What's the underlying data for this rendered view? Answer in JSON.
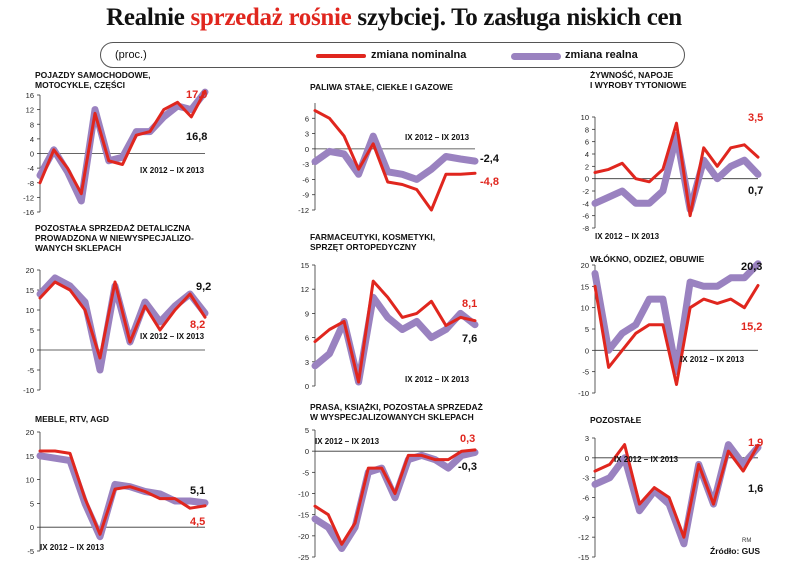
{
  "header": {
    "title_part1": "Realnie ",
    "title_highlight": "sprzedaż rośnie",
    "title_part2": " szybciej.  To zasługa niskich cen"
  },
  "legend": {
    "unit": "(proc.)",
    "nominal": "zmiana nominalna",
    "real": "zmiana realna"
  },
  "footer": {
    "initials": "RM",
    "source": "Źródło: GUS"
  },
  "colors": {
    "nominal": "#e0261e",
    "real": "#9a82c0",
    "title_highlight": "#e0261e"
  },
  "chart_data": [
    {
      "type": "line",
      "title_lines": [
        "POJAZDY SAMOCHODOWE,",
        "MOTOCYKLE, CZĘŚCI"
      ],
      "period_label": "IX 2012 – IX 2013",
      "ylim": [
        -16,
        16
      ],
      "yticks": [
        -16,
        -12,
        -8,
        -4,
        0,
        4,
        8,
        12,
        16
      ],
      "series": [
        {
          "name": "zmiana nominalna",
          "values": [
            -8,
            1,
            -4,
            -11,
            11,
            -2,
            -3,
            5,
            6,
            12,
            14,
            10,
            17
          ]
        },
        {
          "name": "zmiana realna",
          "values": [
            -6,
            1,
            -5,
            -13,
            12,
            -2,
            -1,
            6,
            6,
            10,
            13,
            12,
            16.8
          ]
        }
      ],
      "end_labels": {
        "nominal": "17,0",
        "real": "16,8"
      }
    },
    {
      "type": "line",
      "title_lines": [
        "PALIWA STAŁE, CIEKŁE I GAZOWE"
      ],
      "period_label": "IX 2012 – IX 2013",
      "ylim": [
        -12,
        9
      ],
      "yticks": [
        -12,
        -9,
        -6,
        -3,
        0,
        3,
        6
      ],
      "series": [
        {
          "name": "zmiana nominalna",
          "values": [
            7.5,
            6,
            2.5,
            -4,
            1,
            -6.5,
            -7,
            -8,
            -12,
            -5,
            -5,
            -4.8
          ]
        },
        {
          "name": "zmiana realna",
          "values": [
            -2.5,
            -0.5,
            -1,
            -5,
            2.5,
            -4.5,
            -5,
            -6,
            -4,
            -1.5,
            -2,
            -2.4
          ]
        }
      ],
      "end_labels": {
        "nominal": "-4,8",
        "real": "-2,4"
      }
    },
    {
      "type": "line",
      "title_lines": [
        "ŻYWNOŚĆ, NAPOJE",
        "I WYROBY TYTONIOWE"
      ],
      "period_label": "IX 2012 – IX 2013",
      "ylim": [
        -8,
        10
      ],
      "yticks": [
        -8,
        -6,
        -4,
        -2,
        0,
        2,
        4,
        6,
        8,
        10
      ],
      "series": [
        {
          "name": "zmiana nominalna",
          "values": [
            1,
            1.5,
            2.5,
            0,
            -0.5,
            1.5,
            9,
            -6,
            5,
            2,
            5,
            5.5,
            3.5
          ]
        },
        {
          "name": "zmiana realna",
          "values": [
            -4,
            -3,
            -2,
            -4,
            -4,
            -2,
            7,
            -5,
            3,
            0,
            2,
            3,
            0.7
          ]
        }
      ],
      "end_labels": {
        "nominal": "3,5",
        "real": "0,7"
      }
    },
    {
      "type": "line",
      "title_lines": [
        "POZOSTAŁA SPRZEDAŻ DETALICZNA",
        "PROWADZONA W NIEWYSPECJALIZO-",
        "WANYCH SKLEPACH"
      ],
      "period_label": "IX 2012 – IX 2013",
      "ylim": [
        -10,
        20
      ],
      "yticks": [
        -10,
        -5,
        0,
        5,
        10,
        15,
        20
      ],
      "series": [
        {
          "name": "zmiana nominalna",
          "values": [
            13,
            17,
            15,
            10,
            -2,
            17,
            2,
            11,
            5,
            10,
            14,
            8.2
          ]
        },
        {
          "name": "zmiana realna",
          "values": [
            14,
            18,
            16,
            12,
            -5,
            16,
            2,
            12,
            7,
            11,
            14,
            9.2
          ]
        }
      ],
      "end_labels": {
        "nominal": "8,2",
        "real": "9,2"
      }
    },
    {
      "type": "line",
      "title_lines": [
        "FARMACEUTYKI, KOSMETYKI,",
        "SPRZĘT ORTOPEDYCZNY"
      ],
      "period_label": "IX 2012 – IX 2013",
      "ylim": [
        0,
        15
      ],
      "yticks": [
        0,
        3,
        6,
        9,
        12,
        15
      ],
      "series": [
        {
          "name": "zmiana nominalna",
          "values": [
            5.5,
            7,
            8,
            0.5,
            13,
            11,
            8.5,
            9,
            10.5,
            7.5,
            8.5,
            8.1
          ]
        },
        {
          "name": "zmiana realna",
          "values": [
            2.5,
            4,
            8,
            0.5,
            11,
            8.5,
            7,
            8,
            6,
            7,
            9,
            7.6
          ]
        }
      ],
      "end_labels": {
        "nominal": "8,1",
        "real": "7,6"
      }
    },
    {
      "type": "line",
      "title_lines": [
        "WŁÓKNO, ODZIEŻ, OBUWIE"
      ],
      "period_label": "IX 2012 – IX 2013",
      "ylim": [
        -10,
        20
      ],
      "yticks": [
        -10,
        -5,
        0,
        5,
        10,
        15,
        20
      ],
      "series": [
        {
          "name": "zmiana nominalna",
          "values": [
            15,
            -4,
            0,
            4,
            6,
            6,
            -8,
            10,
            12,
            11,
            12,
            10,
            15.2
          ]
        },
        {
          "name": "zmiana realna",
          "values": [
            18,
            0,
            4,
            6,
            12,
            12,
            -5,
            16,
            15,
            15,
            17,
            17,
            20.3
          ]
        }
      ],
      "end_labels": {
        "nominal": "15,2",
        "real": "20,3"
      }
    },
    {
      "type": "line",
      "title_lines": [
        "MEBLE, RTV, AGD"
      ],
      "period_label": "IX 2012 – IX 2013",
      "ylim": [
        -5,
        20
      ],
      "yticks": [
        -5,
        0,
        5,
        10,
        15,
        20
      ],
      "series": [
        {
          "name": "zmiana nominalna",
          "values": [
            16,
            16,
            15.5,
            6,
            -1.5,
            8,
            8.5,
            7.5,
            6,
            6,
            4,
            4.5
          ]
        },
        {
          "name": "zmiana realna",
          "values": [
            15,
            14.5,
            14,
            5,
            -2,
            9,
            8.5,
            7.5,
            7,
            5.5,
            5.5,
            5.1
          ]
        }
      ],
      "end_labels": {
        "nominal": "4,5",
        "real": "5,1"
      }
    },
    {
      "type": "line",
      "title_lines": [
        "PRASA, KSIĄŻKI, POZOSTAŁA SPRZEDAŻ",
        "W WYSPECJALIZOWANYCH SKLEPACH"
      ],
      "period_label": "IX 2012 – IX 2013",
      "ylim": [
        -25,
        5
      ],
      "yticks": [
        -25,
        -20,
        -15,
        -10,
        -5,
        0,
        5
      ],
      "series": [
        {
          "name": "zmiana nominalna",
          "values": [
            -13,
            -15,
            -22,
            -17,
            -4,
            -4,
            -10,
            -1,
            -1,
            -2,
            -2,
            0,
            0.3
          ]
        },
        {
          "name": "zmiana realna",
          "values": [
            -16,
            -18,
            -23,
            -18,
            -5,
            -4,
            -11,
            -2,
            -1,
            -2,
            -4,
            -1,
            -0.3
          ]
        }
      ],
      "end_labels": {
        "nominal": "0,3",
        "real": "-0,3"
      }
    },
    {
      "type": "line",
      "title_lines": [
        "POZOSTAŁE"
      ],
      "period_label": "IX 2012 – IX 2013",
      "ylim": [
        -15,
        3
      ],
      "yticks": [
        -15,
        -12,
        -9,
        -6,
        -3,
        0,
        3
      ],
      "series": [
        {
          "name": "zmiana nominalna",
          "values": [
            -2,
            -1,
            2,
            -7,
            -4.5,
            -6,
            -12,
            -1,
            -7,
            1,
            -2,
            1.9
          ]
        },
        {
          "name": "zmiana realna",
          "values": [
            -4,
            -3,
            0,
            -8,
            -5,
            -7,
            -13,
            -1,
            -7,
            2,
            -1,
            1.6
          ]
        }
      ],
      "end_labels": {
        "nominal": "1,9",
        "real": "1,6"
      }
    }
  ]
}
